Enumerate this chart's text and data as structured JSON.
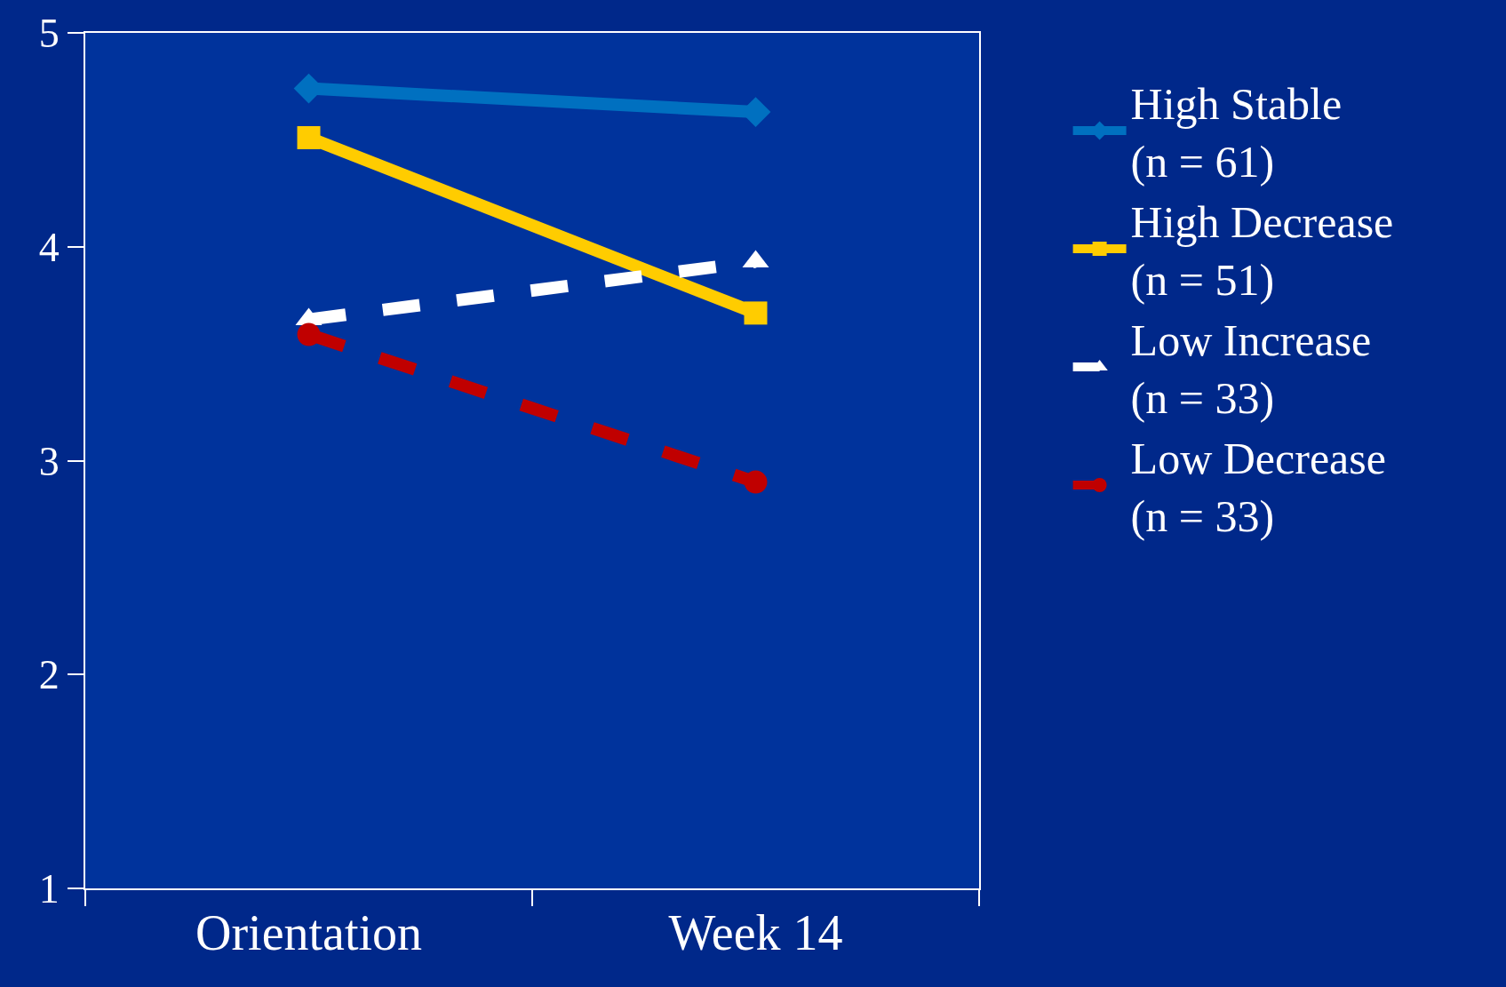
{
  "chart_data": {
    "type": "line",
    "categories": [
      "Orientation",
      "Week 14"
    ],
    "ylim": [
      1,
      5
    ],
    "yticks": [
      1,
      2,
      3,
      4,
      5
    ],
    "grid": false,
    "legend": "right",
    "series": [
      {
        "name": "High Stable\n(n = 61)",
        "color": "#0070c0",
        "values": [
          4.74,
          4.63
        ],
        "marker": "diamond",
        "line_style": "solid"
      },
      {
        "name": "High Decrease\n(n = 51)",
        "color": "#ffcc00",
        "values": [
          4.51,
          3.69
        ],
        "marker": "square",
        "line_style": "solid"
      },
      {
        "name": "Low Increase\n(n = 33)",
        "color": "#ffffff",
        "values": [
          3.66,
          3.93
        ],
        "marker": "triangle",
        "line_style": "dashed"
      },
      {
        "name": "Low Decrease\n(n = 33)",
        "color": "#c00000",
        "values": [
          3.59,
          2.9
        ],
        "marker": "circle",
        "line_style": "dashed"
      }
    ]
  }
}
